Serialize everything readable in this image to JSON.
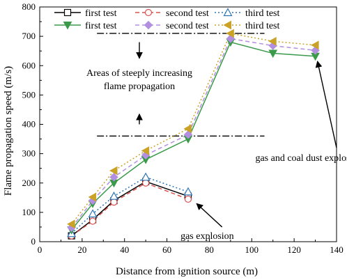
{
  "chart_data": {
    "type": "line",
    "xlabel": "Distance from ignition source (m)",
    "ylabel": "Flame propagation speed (m/s)",
    "xlim": [
      0,
      140
    ],
    "ylim": [
      0,
      800
    ],
    "xticks": [
      0,
      20,
      40,
      60,
      80,
      100,
      120,
      140
    ],
    "yticks": [
      0,
      100,
      200,
      300,
      400,
      500,
      600,
      700,
      800
    ],
    "grid": false,
    "legend": "top",
    "series": [
      {
        "name": "first test",
        "group": "gas",
        "color": "#000000",
        "dash": "solid",
        "marker": "square-open",
        "x": [
          15,
          25,
          35,
          50,
          70
        ],
        "y": [
          20,
          75,
          140,
          205,
          155
        ]
      },
      {
        "name": "second test",
        "group": "gas",
        "color": "#d9534f",
        "dash": "dash",
        "marker": "circle-open",
        "x": [
          15,
          25,
          35,
          50,
          70
        ],
        "y": [
          20,
          70,
          135,
          200,
          145
        ]
      },
      {
        "name": "third test",
        "group": "gas",
        "color": "#2e75b6",
        "dash": "dot",
        "marker": "triangle-open",
        "x": [
          15,
          25,
          35,
          50,
          70
        ],
        "y": [
          28,
          95,
          155,
          220,
          170
        ]
      },
      {
        "name": "first test",
        "group": "coal",
        "color": "#3a9a4a",
        "dash": "solid",
        "marker": "triangle-down-filled",
        "x": [
          15,
          25,
          35,
          50,
          70,
          90,
          110,
          130
        ],
        "y": [
          40,
          130,
          200,
          280,
          350,
          680,
          642,
          632
        ]
      },
      {
        "name": "second test",
        "group": "coal",
        "color": "#b28fe0",
        "dash": "dash",
        "marker": "diamond-filled",
        "x": [
          15,
          25,
          35,
          50,
          70,
          90,
          110,
          130
        ],
        "y": [
          48,
          140,
          220,
          295,
          365,
          692,
          668,
          652
        ]
      },
      {
        "name": "third test",
        "group": "coal",
        "color": "#c9a227",
        "dash": "dot",
        "marker": "triangle-left-filled",
        "x": [
          15,
          25,
          35,
          50,
          70,
          90,
          110,
          130
        ],
        "y": [
          60,
          152,
          242,
          310,
          385,
          710,
          683,
          670
        ]
      }
    ],
    "reference_lines": [
      {
        "y": 710,
        "x_from": 27,
        "x_to": 106
      },
      {
        "y": 360,
        "x_from": 27,
        "x_to": 106
      }
    ],
    "annotations": [
      {
        "text": "Areas of steeply increasing",
        "x": 47,
        "y": 565
      },
      {
        "text": "flame propagation",
        "x": 47,
        "y": 520
      },
      {
        "text": "gas and coal dust explosion",
        "x": 127,
        "y": 275
      },
      {
        "text": "gas explosion",
        "x": 79,
        "y": 10
      }
    ],
    "arrows": [
      {
        "from": [
          47,
          680
        ],
        "to": [
          47,
          625
        ]
      },
      {
        "from": [
          47,
          400
        ],
        "to": [
          47,
          435
        ]
      },
      {
        "from": [
          140,
          320
        ],
        "to": [
          131,
          615
        ]
      },
      {
        "from": [
          86,
          50
        ],
        "to": [
          74,
          130
        ]
      }
    ]
  }
}
